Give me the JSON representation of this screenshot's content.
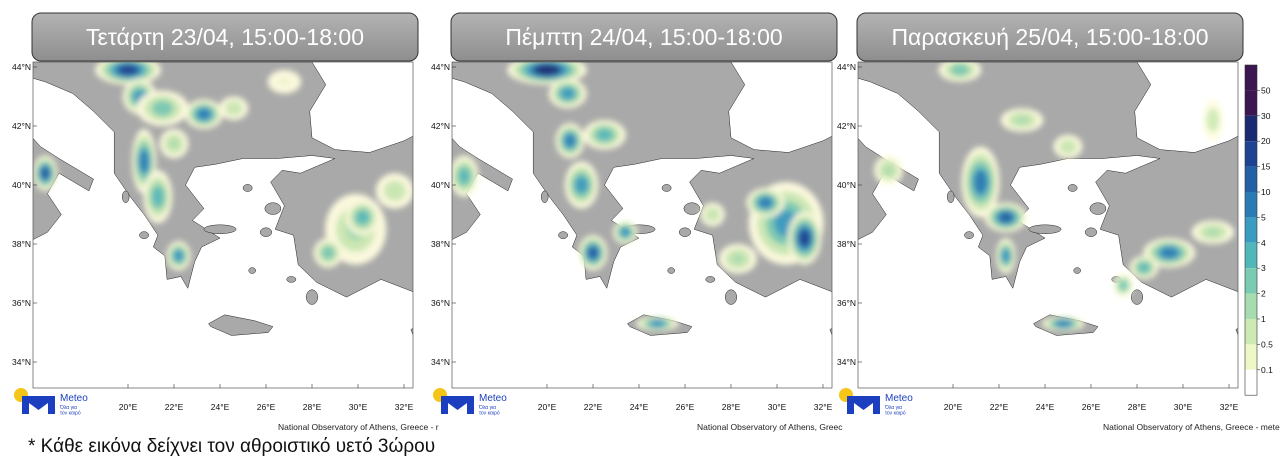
{
  "panels": [
    {
      "title": "Τετάρτη 23/04, 15:00-18:00",
      "credit": "National Observatory of Athens, Greece - r"
    },
    {
      "title": "Πέμπτη 24/04, 15:00-18:00",
      "credit": "National Observatory of Athens, Greec"
    },
    {
      "title": "Παρασκευή 25/04, 15:00-18:00",
      "credit": "National Observatory of Athens, Greece - meteo.gr"
    }
  ],
  "lat_labels": [
    "44°N",
    "42°N",
    "40°N",
    "38°N",
    "36°N",
    "34°N"
  ],
  "lon_labels": [
    "20°E",
    "22°E",
    "24°E",
    "26°E",
    "28°E",
    "30°E",
    "32°E"
  ],
  "colorbar_labels": [
    "50",
    "30",
    "20",
    "15",
    "10",
    "5",
    "4",
    "3",
    "2",
    "1",
    "0.5",
    "0.1"
  ],
  "logo": {
    "name": "Meteo",
    "tagline": [
      "Όλα για",
      "τον καιρό"
    ]
  },
  "footnote": "* Κάθε εικόνα δείχνει τον αθροιστικό υετό 3ώρου"
}
